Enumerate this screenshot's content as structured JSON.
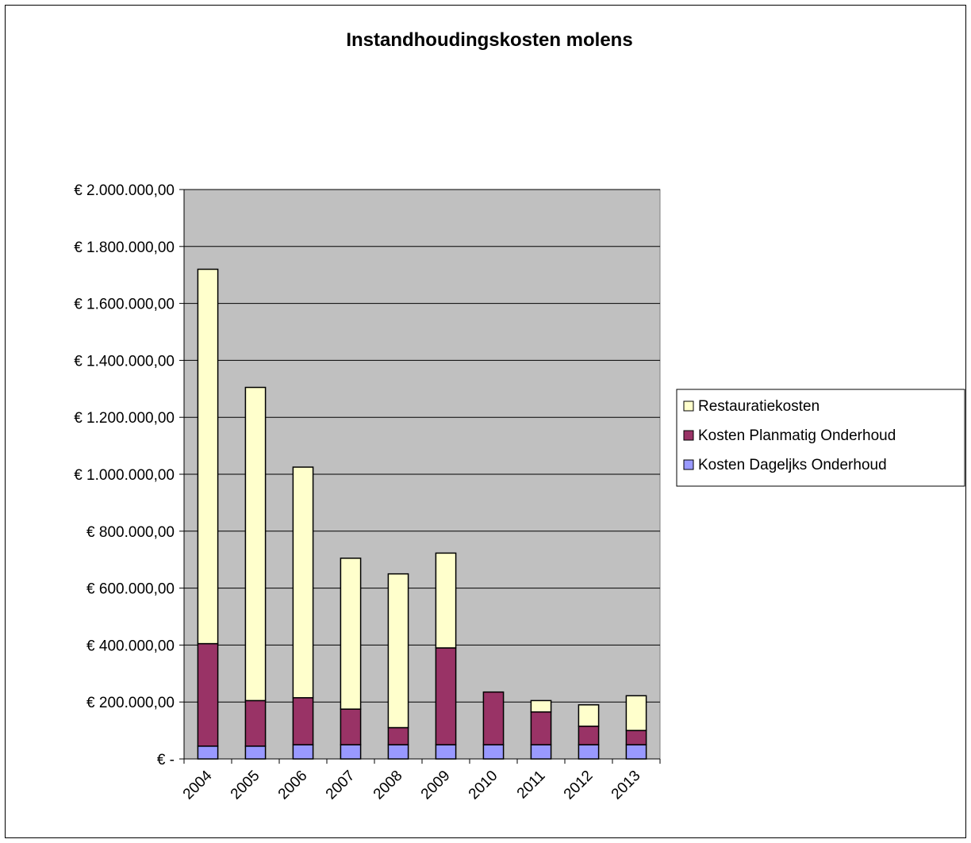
{
  "chart_data": {
    "type": "bar",
    "stacked": true,
    "title": "Instandhoudingskosten molens",
    "xlabel": "",
    "ylabel": "",
    "categories": [
      "2004",
      "2005",
      "2006",
      "2007",
      "2008",
      "2009",
      "2010",
      "2011",
      "2012",
      "2013"
    ],
    "ylim": [
      0,
      2000000
    ],
    "yticks": [
      0,
      200000,
      400000,
      600000,
      800000,
      1000000,
      1200000,
      1400000,
      1600000,
      1800000,
      2000000
    ],
    "ytick_labels": [
      "€ -",
      "€ 200.000,00",
      "€ 400.000,00",
      "€ 600.000,00",
      "€ 800.000,00",
      "€ 1.000.000,00",
      "€ 1.200.000,00",
      "€ 1.400.000,00",
      "€ 1.600.000,00",
      "€ 1.800.000,00",
      "€ 2.000.000,00"
    ],
    "grid": true,
    "legend_position": "right",
    "series": [
      {
        "name": "Kosten Dageljks Onderhoud",
        "color": "#9999ff",
        "values": [
          45000,
          45000,
          50000,
          50000,
          50000,
          50000,
          50000,
          50000,
          50000,
          50000
        ]
      },
      {
        "name": "Kosten Planmatig Onderhoud",
        "color": "#993366",
        "values": [
          360000,
          160000,
          165000,
          125000,
          60000,
          340000,
          185000,
          115000,
          65000,
          50000
        ]
      },
      {
        "name": "Restauratiekosten",
        "color": "#ffffcc",
        "values": [
          1315000,
          1100000,
          810000,
          530000,
          540000,
          333000,
          0,
          40000,
          75000,
          122000
        ]
      }
    ],
    "plot_background": "#c0c0c0"
  }
}
